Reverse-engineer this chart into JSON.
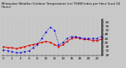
{
  "title": "Milwaukee Weather Outdoor Temperature (vs) THSW Index per Hour (Last 24 Hours)",
  "background_color": "#c8c8c8",
  "plot_bg_color": "#c8c8c8",
  "hours": [
    0,
    1,
    2,
    3,
    4,
    5,
    6,
    7,
    8,
    9,
    10,
    11,
    12,
    13,
    14,
    15,
    16,
    17,
    18,
    19,
    20,
    21,
    22,
    23
  ],
  "temp": [
    36,
    35,
    35,
    34,
    35,
    36,
    37,
    38,
    39,
    40,
    41,
    40,
    38,
    36,
    38,
    41,
    44,
    45,
    44,
    43,
    43,
    42,
    42,
    43
  ],
  "thsw": [
    33,
    32,
    31,
    30,
    30,
    31,
    32,
    35,
    38,
    44,
    50,
    55,
    52,
    38,
    40,
    44,
    46,
    46,
    45,
    44,
    44,
    44,
    44,
    46
  ],
  "temp_color": "#dd0000",
  "thsw_color": "#0000dd",
  "ylim": [
    27,
    63
  ],
  "yticks": [
    28,
    32,
    36,
    40,
    44,
    48,
    52,
    56,
    60
  ],
  "ylabel_fontsize": 3.0,
  "title_fontsize": 2.8,
  "line_width": 0.6,
  "marker_size": 1.2,
  "grid_color": "#aaaaaa"
}
